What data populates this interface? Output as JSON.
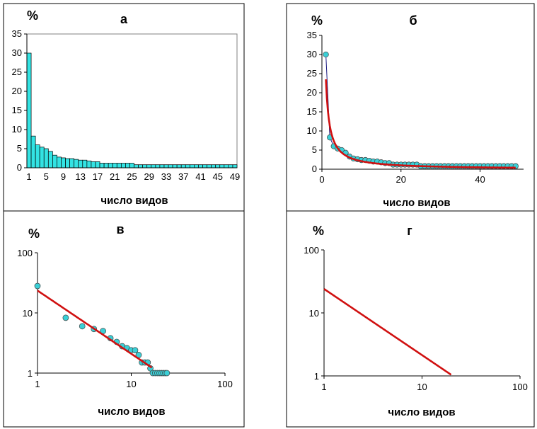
{
  "colors": {
    "fill": "#33E3E3",
    "point": "#3ACFD6",
    "fit": "#D01010",
    "thin": "#1A1A80"
  },
  "chart_data": [
    {
      "panel": "а",
      "type": "bar",
      "title": "а",
      "ylabel": "%",
      "xlabel": "число видов",
      "categories": [
        1,
        2,
        3,
        4,
        5,
        6,
        7,
        8,
        9,
        10,
        11,
        12,
        13,
        14,
        15,
        16,
        17,
        18,
        19,
        20,
        21,
        22,
        23,
        24,
        25,
        26,
        27,
        28,
        29,
        30,
        31,
        32,
        33,
        34,
        35,
        36,
        37,
        38,
        39,
        40,
        41,
        42,
        43,
        44,
        45,
        46,
        47,
        48,
        49
      ],
      "values": [
        30,
        8.3,
        6,
        5.4,
        5,
        4.3,
        3.3,
        2.8,
        2.6,
        2.4,
        2.4,
        2.2,
        2,
        2,
        1.8,
        1.6,
        1.6,
        1.2,
        1.2,
        1.2,
        1.2,
        1.2,
        1.2,
        1.2,
        1.2,
        0.8,
        0.8,
        0.8,
        0.8,
        0.8,
        0.8,
        0.8,
        0.8,
        0.8,
        0.8,
        0.8,
        0.8,
        0.8,
        0.8,
        0.8,
        0.8,
        0.8,
        0.8,
        0.8,
        0.8,
        0.8,
        0.8,
        0.8,
        0.8
      ],
      "xticks": [
        "1",
        "5",
        "9",
        "13",
        "17",
        "21",
        "25",
        "29",
        "33",
        "37",
        "41",
        "45",
        "49"
      ],
      "yticks": [
        "0",
        "5",
        "10",
        "15",
        "20",
        "25",
        "30",
        "35"
      ],
      "ylim": [
        0,
        35
      ],
      "grid": false
    },
    {
      "panel": "б",
      "type": "scatter",
      "title": "б",
      "ylabel": "%",
      "xlabel": "число видов",
      "points": [
        [
          1,
          30
        ],
        [
          2,
          8.3
        ],
        [
          3,
          6
        ],
        [
          4,
          5.4
        ],
        [
          5,
          5
        ],
        [
          6,
          4.3
        ],
        [
          7,
          3.3
        ],
        [
          8,
          2.8
        ],
        [
          9,
          2.6
        ],
        [
          10,
          2.4
        ],
        [
          11,
          2.4
        ],
        [
          12,
          2.2
        ],
        [
          13,
          2
        ],
        [
          14,
          2
        ],
        [
          15,
          1.8
        ],
        [
          16,
          1.6
        ],
        [
          17,
          1.6
        ],
        [
          18,
          1.2
        ],
        [
          19,
          1.2
        ],
        [
          20,
          1.2
        ],
        [
          21,
          1.2
        ],
        [
          22,
          1.2
        ],
        [
          23,
          1.2
        ],
        [
          24,
          1.2
        ],
        [
          25,
          0.8
        ],
        [
          26,
          0.8
        ],
        [
          27,
          0.8
        ],
        [
          28,
          0.8
        ],
        [
          29,
          0.8
        ],
        [
          30,
          0.8
        ],
        [
          31,
          0.8
        ],
        [
          32,
          0.8
        ],
        [
          33,
          0.8
        ],
        [
          34,
          0.8
        ],
        [
          35,
          0.8
        ],
        [
          36,
          0.8
        ],
        [
          37,
          0.8
        ],
        [
          38,
          0.8
        ],
        [
          39,
          0.8
        ],
        [
          40,
          0.8
        ],
        [
          41,
          0.8
        ],
        [
          42,
          0.8
        ],
        [
          43,
          0.8
        ],
        [
          44,
          0.8
        ],
        [
          45,
          0.8
        ],
        [
          46,
          0.8
        ],
        [
          47,
          0.8
        ],
        [
          48,
          0.8
        ],
        [
          49,
          0.8
        ]
      ],
      "fit": {
        "a": 23.5,
        "b": -1.05
      },
      "xticks": [
        0,
        20,
        40
      ],
      "yticks": [
        0,
        5,
        10,
        15,
        20,
        25,
        30,
        35
      ],
      "xlim": [
        0,
        51
      ],
      "ylim": [
        0,
        35
      ],
      "grid": false
    },
    {
      "panel": "в",
      "type": "scatter",
      "scale": "log-log",
      "title": "в",
      "ylabel": "%",
      "xlabel": "число видов",
      "points": [
        [
          1,
          28
        ],
        [
          2,
          8.3
        ],
        [
          3,
          6
        ],
        [
          4,
          5.4
        ],
        [
          5,
          5
        ],
        [
          6,
          3.8
        ],
        [
          7,
          3.3
        ],
        [
          8,
          2.8
        ],
        [
          9,
          2.6
        ],
        [
          10,
          2.4
        ],
        [
          11,
          2.4
        ],
        [
          12,
          2
        ],
        [
          13,
          1.5
        ],
        [
          14,
          1.5
        ],
        [
          15,
          1.5
        ],
        [
          16,
          1.2
        ],
        [
          17,
          1
        ],
        [
          18,
          1
        ],
        [
          19,
          1
        ],
        [
          20,
          1
        ],
        [
          21,
          1
        ],
        [
          22,
          1
        ],
        [
          23,
          1
        ],
        [
          24,
          1
        ]
      ],
      "fit": {
        "a": 23.5,
        "b": -1.05
      },
      "xticks": [
        "1",
        "10",
        "100"
      ],
      "yticks": [
        "1",
        "10",
        "100"
      ],
      "xlim": [
        1,
        100
      ],
      "ylim": [
        1,
        100
      ],
      "grid": false
    },
    {
      "panel": "г",
      "type": "line",
      "scale": "log-log",
      "title": "г",
      "ylabel": "%",
      "xlabel": "число видов",
      "fit": {
        "a": 24,
        "b": -1.05,
        "xmax": 20
      },
      "xticks": [
        "1",
        "10",
        "100"
      ],
      "yticks": [
        "1",
        "10",
        "100"
      ],
      "xlim": [
        1,
        100
      ],
      "ylim": [
        1,
        100
      ],
      "grid": false
    }
  ]
}
